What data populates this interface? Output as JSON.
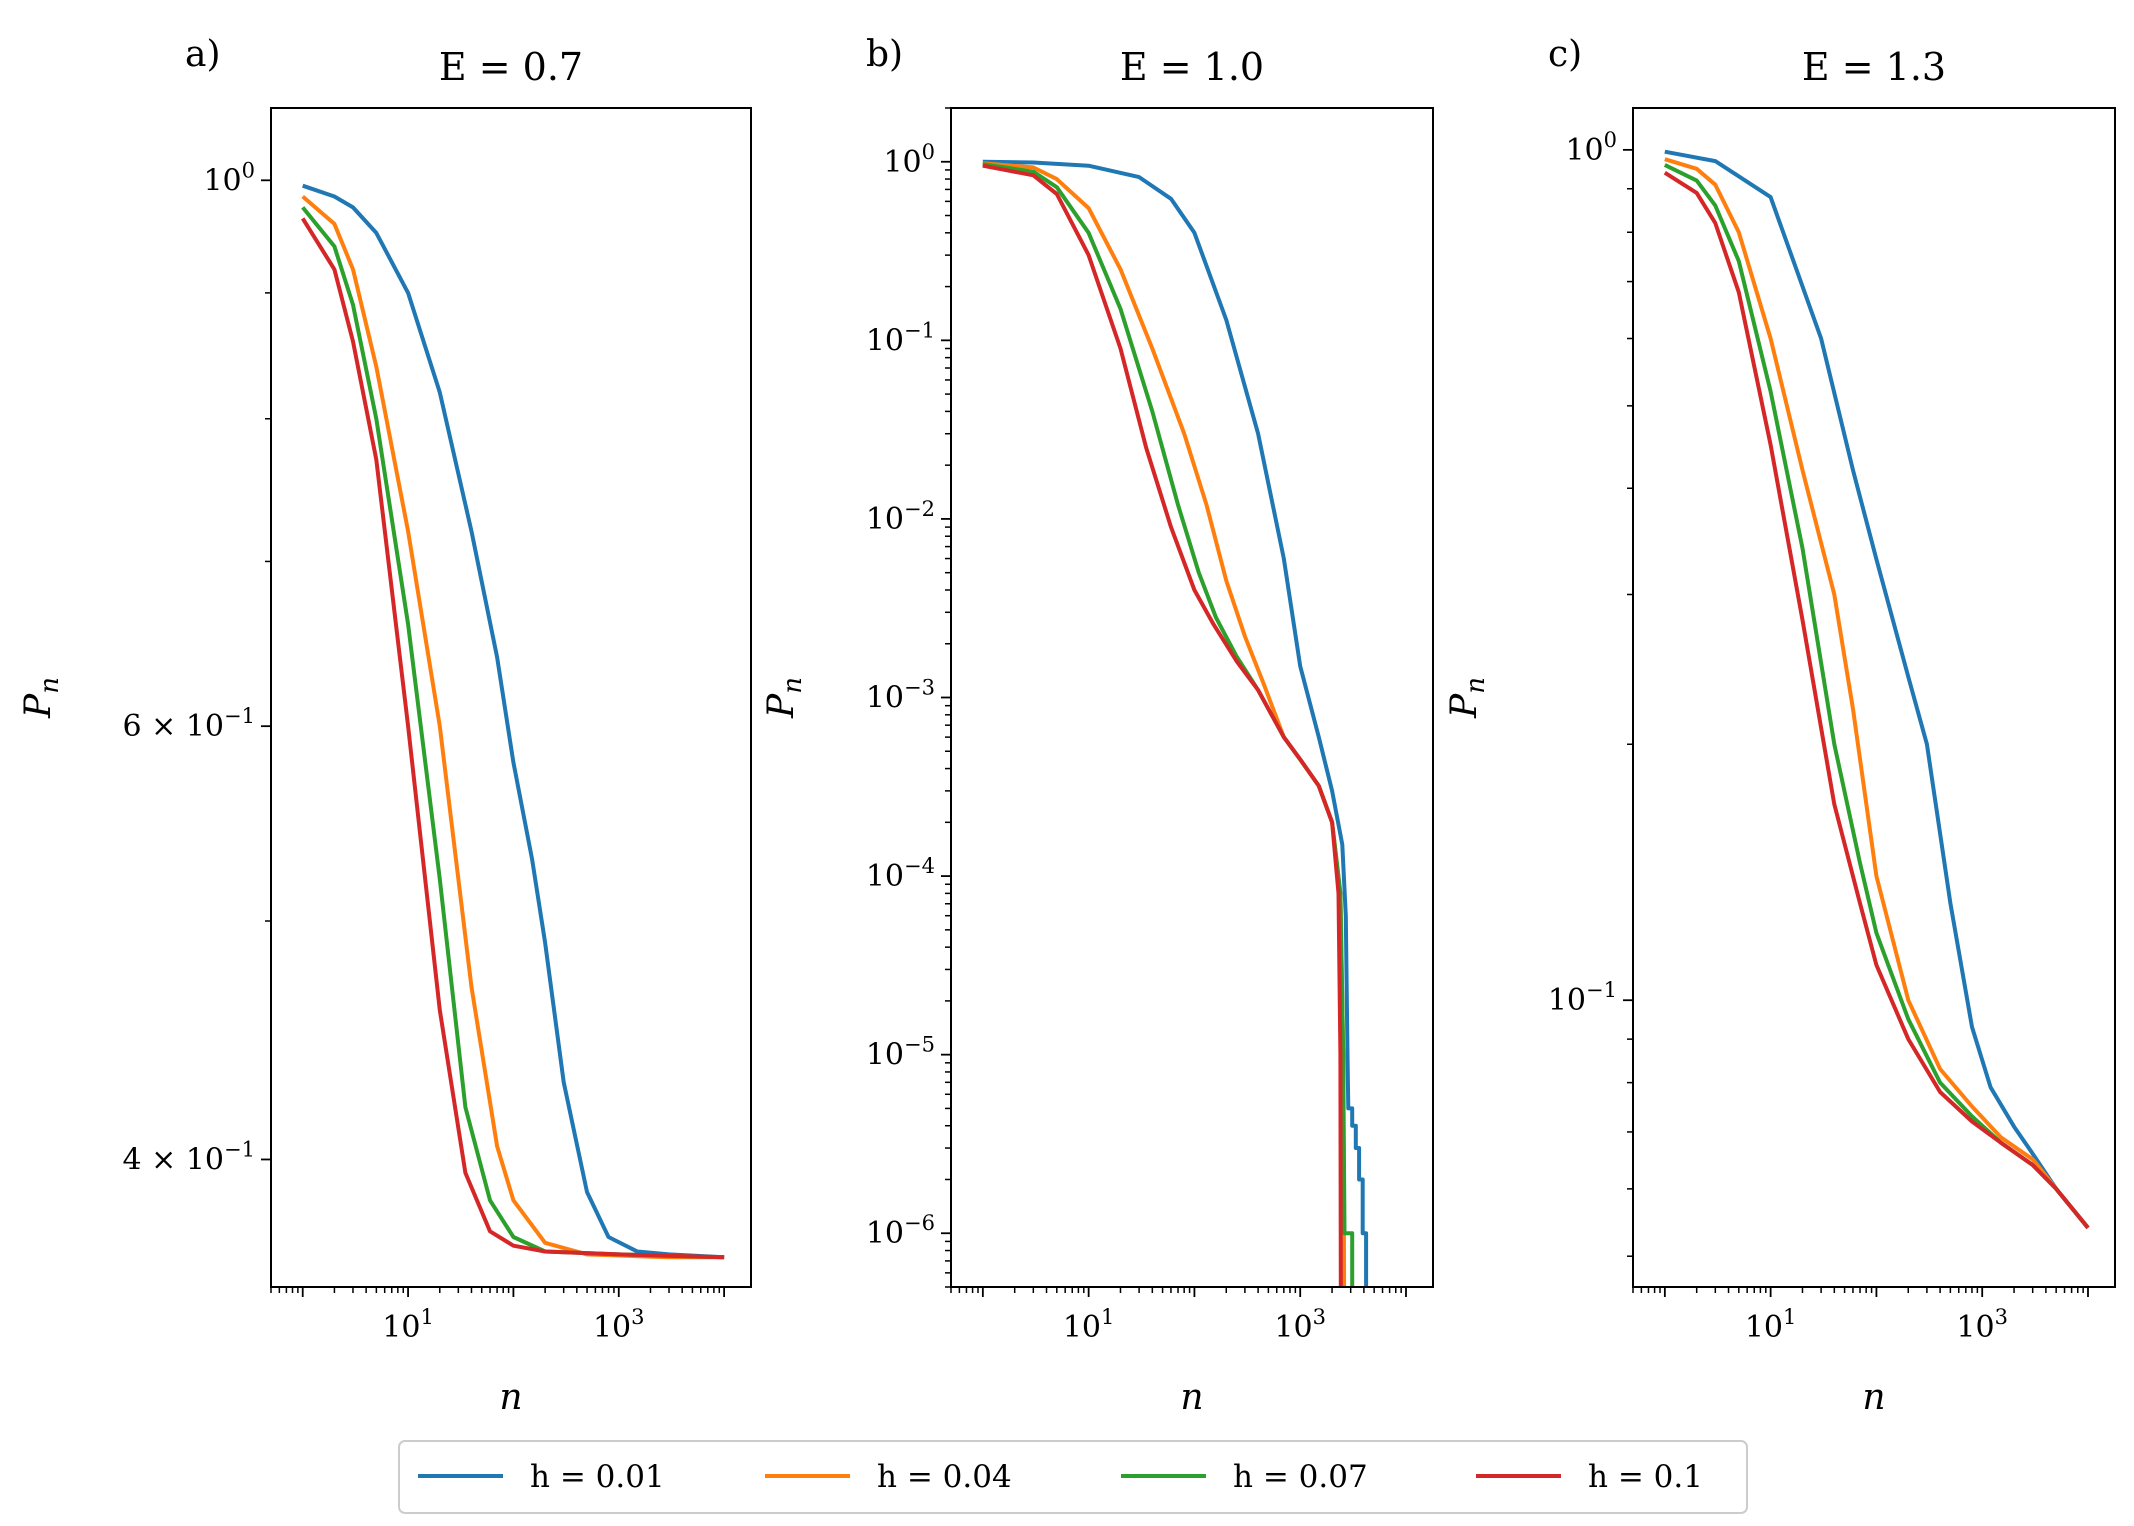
{
  "legend": {
    "location": "bottom-center",
    "entries": [
      {
        "label": "h = 0.01",
        "color": "#1f77b4"
      },
      {
        "label": "h = 0.04",
        "color": "#ff7f0e"
      },
      {
        "label": "h = 0.07",
        "color": "#2ca02c"
      },
      {
        "label": "h = 0.1",
        "color": "#d62728"
      }
    ]
  },
  "chart_data": [
    {
      "panel_label": "a)",
      "title": "E = 0.7",
      "type": "line",
      "xlabel": "n",
      "ylabel": "P",
      "ylabel_sub": "n",
      "xscale": "log",
      "yscale": "log",
      "xlim": [
        0.5,
        18000
      ],
      "ylim": [
        0.355,
        1.07
      ],
      "x_ticks": [
        {
          "value": 10,
          "base": "10",
          "exp": "1"
        },
        {
          "value": 1000,
          "base": "10",
          "exp": "3"
        }
      ],
      "y_ticks": [
        {
          "value": 1.0,
          "mant": "",
          "base": "10",
          "exp": "0"
        },
        {
          "value": 0.6,
          "mant": "6 × ",
          "base": "10",
          "exp": "−1"
        },
        {
          "value": 0.4,
          "mant": "4 × ",
          "base": "10",
          "exp": "−1"
        }
      ],
      "y_minor": [
        0.9,
        0.8,
        0.7,
        0.5
      ],
      "series": [
        {
          "name": "h = 0.01",
          "color": "#1f77b4",
          "points": [
            [
              1,
              0.995
            ],
            [
              2,
              0.985
            ],
            [
              3,
              0.975
            ],
            [
              5,
              0.952
            ],
            [
              10,
              0.9
            ],
            [
              20,
              0.82
            ],
            [
              40,
              0.72
            ],
            [
              70,
              0.64
            ],
            [
              100,
              0.58
            ],
            [
              150,
              0.53
            ],
            [
              200,
              0.49
            ],
            [
              300,
              0.43
            ],
            [
              500,
              0.388
            ],
            [
              800,
              0.372
            ],
            [
              1500,
              0.367
            ],
            [
              3000,
              0.366
            ],
            [
              10000,
              0.365
            ]
          ]
        },
        {
          "name": "h = 0.04",
          "color": "#ff7f0e",
          "points": [
            [
              1,
              0.985
            ],
            [
              2,
              0.96
            ],
            [
              3,
              0.92
            ],
            [
              5,
              0.84
            ],
            [
              10,
              0.72
            ],
            [
              20,
              0.6
            ],
            [
              40,
              0.47
            ],
            [
              70,
              0.405
            ],
            [
              100,
              0.385
            ],
            [
              200,
              0.37
            ],
            [
              500,
              0.366
            ],
            [
              3000,
              0.365
            ],
            [
              10000,
              0.365
            ]
          ]
        },
        {
          "name": "h = 0.07",
          "color": "#2ca02c",
          "points": [
            [
              1,
              0.975
            ],
            [
              2,
              0.94
            ],
            [
              3,
              0.89
            ],
            [
              5,
              0.8
            ],
            [
              10,
              0.66
            ],
            [
              20,
              0.52
            ],
            [
              35,
              0.42
            ],
            [
              60,
              0.385
            ],
            [
              100,
              0.372
            ],
            [
              200,
              0.367
            ],
            [
              1000,
              0.366
            ],
            [
              10000,
              0.365
            ]
          ]
        },
        {
          "name": "h = 0.1",
          "color": "#d62728",
          "points": [
            [
              1,
              0.965
            ],
            [
              2,
              0.92
            ],
            [
              3,
              0.86
            ],
            [
              5,
              0.77
            ],
            [
              10,
              0.6
            ],
            [
              20,
              0.46
            ],
            [
              35,
              0.395
            ],
            [
              60,
              0.374
            ],
            [
              100,
              0.369
            ],
            [
              200,
              0.367
            ],
            [
              1000,
              0.366
            ],
            [
              10000,
              0.365
            ]
          ]
        }
      ]
    },
    {
      "panel_label": "b)",
      "title": "E = 1.0",
      "type": "line",
      "xlabel": "n",
      "ylabel": "P",
      "ylabel_sub": "n",
      "xscale": "log",
      "yscale": "log",
      "xlim": [
        0.5,
        18000
      ],
      "ylim": [
        5e-07,
        2.0
      ],
      "x_ticks": [
        {
          "value": 10,
          "base": "10",
          "exp": "1"
        },
        {
          "value": 1000,
          "base": "10",
          "exp": "3"
        }
      ],
      "y_ticks": [
        {
          "value": 1,
          "mant": "",
          "base": "10",
          "exp": "0"
        },
        {
          "value": 0.1,
          "mant": "",
          "base": "10",
          "exp": "−1"
        },
        {
          "value": 0.01,
          "mant": "",
          "base": "10",
          "exp": "−2"
        },
        {
          "value": 0.001,
          "mant": "",
          "base": "10",
          "exp": "−3"
        },
        {
          "value": 0.0001,
          "mant": "",
          "base": "10",
          "exp": "−4"
        },
        {
          "value": 1e-05,
          "mant": "",
          "base": "10",
          "exp": "−5"
        },
        {
          "value": 1e-06,
          "mant": "",
          "base": "10",
          "exp": "−6"
        }
      ],
      "y_minor_decades": true,
      "series": [
        {
          "name": "h = 0.01",
          "color": "#1f77b4",
          "points": [
            [
              1,
              1.0
            ],
            [
              3,
              0.99
            ],
            [
              10,
              0.95
            ],
            [
              30,
              0.82
            ],
            [
              60,
              0.62
            ],
            [
              100,
              0.4
            ],
            [
              200,
              0.13
            ],
            [
              400,
              0.03
            ],
            [
              700,
              0.006
            ],
            [
              1000,
              0.0015
            ],
            [
              1500,
              0.0006
            ],
            [
              2000,
              0.0003
            ],
            [
              2500,
              0.00015
            ],
            [
              2700,
              6e-05
            ],
            [
              2800,
              1e-05
            ],
            [
              2850,
              5e-06
            ],
            [
              3100,
              5e-06
            ],
            [
              3100,
              4e-06
            ],
            [
              3350,
              4e-06
            ],
            [
              3350,
              3e-06
            ],
            [
              3600,
              3e-06
            ],
            [
              3600,
              2e-06
            ],
            [
              3900,
              2e-06
            ],
            [
              3900,
              1e-06
            ],
            [
              4200,
              1e-06
            ],
            [
              4200,
              5e-07
            ]
          ]
        },
        {
          "name": "h = 0.04",
          "color": "#ff7f0e",
          "points": [
            [
              1,
              0.98
            ],
            [
              3,
              0.93
            ],
            [
              5,
              0.8
            ],
            [
              10,
              0.55
            ],
            [
              20,
              0.25
            ],
            [
              40,
              0.09
            ],
            [
              80,
              0.03
            ],
            [
              130,
              0.012
            ],
            [
              200,
              0.0045
            ],
            [
              300,
              0.0022
            ],
            [
              450,
              0.0012
            ],
            [
              700,
              0.0006
            ],
            [
              1000,
              0.00045
            ],
            [
              1500,
              0.00032
            ],
            [
              2000,
              0.0002
            ],
            [
              2400,
              8e-05
            ],
            [
              2550,
              1e-05
            ],
            [
              2600,
              5e-07
            ]
          ]
        },
        {
          "name": "h = 0.07",
          "color": "#2ca02c",
          "points": [
            [
              1,
              0.97
            ],
            [
              3,
              0.88
            ],
            [
              5,
              0.72
            ],
            [
              10,
              0.4
            ],
            [
              20,
              0.15
            ],
            [
              40,
              0.04
            ],
            [
              70,
              0.012
            ],
            [
              110,
              0.005
            ],
            [
              160,
              0.0028
            ],
            [
              250,
              0.0017
            ],
            [
              400,
              0.0011
            ],
            [
              700,
              0.0006
            ],
            [
              1000,
              0.00045
            ],
            [
              1500,
              0.00032
            ],
            [
              2000,
              0.0002
            ],
            [
              2400,
              8e-05
            ],
            [
              2550,
              1e-05
            ],
            [
              2620,
              1e-06
            ],
            [
              3100,
              1e-06
            ],
            [
              3100,
              5e-07
            ]
          ]
        },
        {
          "name": "h = 0.1",
          "color": "#d62728",
          "points": [
            [
              1,
              0.95
            ],
            [
              3,
              0.84
            ],
            [
              5,
              0.66
            ],
            [
              10,
              0.3
            ],
            [
              20,
              0.09
            ],
            [
              35,
              0.025
            ],
            [
              60,
              0.009
            ],
            [
              100,
              0.004
            ],
            [
              150,
              0.0026
            ],
            [
              250,
              0.0016
            ],
            [
              400,
              0.0011
            ],
            [
              700,
              0.0006
            ],
            [
              1000,
              0.00045
            ],
            [
              1500,
              0.00032
            ],
            [
              2000,
              0.0002
            ],
            [
              2300,
              8e-05
            ],
            [
              2400,
              1e-05
            ],
            [
              2420,
              5e-07
            ]
          ]
        }
      ]
    },
    {
      "panel_label": "c)",
      "title": "E = 1.3",
      "type": "line",
      "xlabel": "n",
      "ylabel": "P",
      "ylabel_sub": "n",
      "xscale": "log",
      "yscale": "log",
      "xlim": [
        0.5,
        18000
      ],
      "ylim": [
        0.046,
        1.12
      ],
      "x_ticks": [
        {
          "value": 10,
          "base": "10",
          "exp": "1"
        },
        {
          "value": 1000,
          "base": "10",
          "exp": "3"
        }
      ],
      "y_ticks": [
        {
          "value": 1.0,
          "mant": "",
          "base": "10",
          "exp": "0"
        },
        {
          "value": 0.1,
          "mant": "",
          "base": "10",
          "exp": "−1"
        }
      ],
      "y_minor": [
        0.9,
        0.8,
        0.7,
        0.6,
        0.5,
        0.4,
        0.3,
        0.2,
        0.09,
        0.08,
        0.07,
        0.06,
        0.05
      ],
      "series": [
        {
          "name": "h = 0.01",
          "color": "#1f77b4",
          "points": [
            [
              1,
              0.995
            ],
            [
              3,
              0.97
            ],
            [
              10,
              0.88
            ],
            [
              30,
              0.6
            ],
            [
              60,
              0.42
            ],
            [
              100,
              0.33
            ],
            [
              200,
              0.24
            ],
            [
              300,
              0.2
            ],
            [
              500,
              0.13
            ],
            [
              800,
              0.093
            ],
            [
              1200,
              0.079
            ],
            [
              2000,
              0.071
            ],
            [
              3000,
              0.066
            ],
            [
              5000,
              0.06
            ],
            [
              10000,
              0.054
            ]
          ]
        },
        {
          "name": "h = 0.04",
          "color": "#ff7f0e",
          "points": [
            [
              1,
              0.975
            ],
            [
              2,
              0.95
            ],
            [
              3,
              0.91
            ],
            [
              5,
              0.8
            ],
            [
              10,
              0.6
            ],
            [
              20,
              0.42
            ],
            [
              40,
              0.3
            ],
            [
              60,
              0.22
            ],
            [
              100,
              0.14
            ],
            [
              200,
              0.1
            ],
            [
              400,
              0.083
            ],
            [
              800,
              0.075
            ],
            [
              1500,
              0.069
            ],
            [
              3000,
              0.065
            ],
            [
              5000,
              0.06
            ],
            [
              10000,
              0.054
            ]
          ]
        },
        {
          "name": "h = 0.07",
          "color": "#2ca02c",
          "points": [
            [
              1,
              0.96
            ],
            [
              2,
              0.92
            ],
            [
              3,
              0.86
            ],
            [
              5,
              0.74
            ],
            [
              10,
              0.52
            ],
            [
              20,
              0.34
            ],
            [
              40,
              0.2
            ],
            [
              70,
              0.145
            ],
            [
              100,
              0.12
            ],
            [
              200,
              0.095
            ],
            [
              400,
              0.08
            ],
            [
              800,
              0.073
            ],
            [
              1500,
              0.068
            ],
            [
              3000,
              0.064
            ],
            [
              5000,
              0.06
            ],
            [
              10000,
              0.054
            ]
          ]
        },
        {
          "name": "h = 0.1",
          "color": "#d62728",
          "points": [
            [
              1,
              0.94
            ],
            [
              2,
              0.89
            ],
            [
              3,
              0.82
            ],
            [
              5,
              0.68
            ],
            [
              10,
              0.45
            ],
            [
              20,
              0.28
            ],
            [
              40,
              0.17
            ],
            [
              70,
              0.13
            ],
            [
              100,
              0.11
            ],
            [
              200,
              0.09
            ],
            [
              400,
              0.078
            ],
            [
              800,
              0.072
            ],
            [
              1500,
              0.068
            ],
            [
              3000,
              0.064
            ],
            [
              5000,
              0.06
            ],
            [
              10000,
              0.054
            ]
          ]
        }
      ]
    }
  ]
}
